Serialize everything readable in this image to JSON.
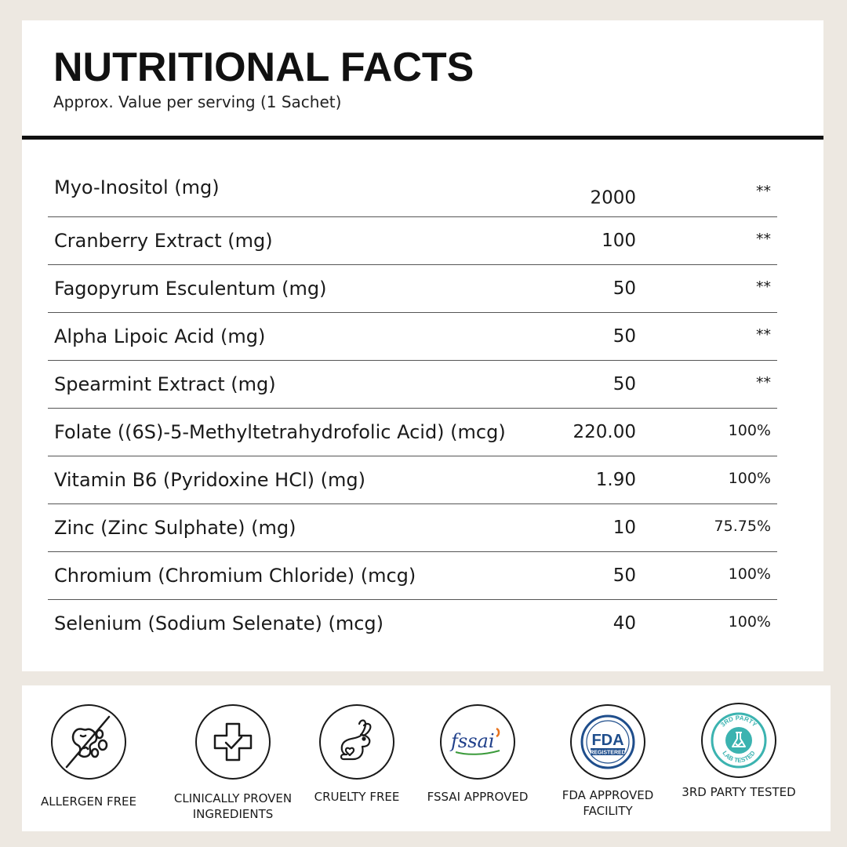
{
  "header": {
    "title": "NUTRITIONAL FACTS",
    "subtitle": "Approx. Value per serving (1 Sachet)"
  },
  "nutrients": [
    {
      "name": "Myo-Inositol (mg)",
      "amount": "2000",
      "dv": "**"
    },
    {
      "name": "Cranberry Extract (mg)",
      "amount": "100",
      "dv": "**"
    },
    {
      "name": "Fagopyrum Esculentum (mg)",
      "amount": "50",
      "dv": "**"
    },
    {
      "name": "Alpha Lipoic Acid (mg)",
      "amount": "50",
      "dv": "**"
    },
    {
      "name": "Spearmint Extract (mg)",
      "amount": "50",
      "dv": "**"
    },
    {
      "name": "Folate ((6S)-5-Methyltetrahydrofolic Acid) (mcg)",
      "amount": "220.00",
      "dv": "100%"
    },
    {
      "name": "Vitamin B6 (Pyridoxine HCl) (mg)",
      "amount": "1.90",
      "dv": "100%"
    },
    {
      "name": "Zinc (Zinc Sulphate) (mg)",
      "amount": "10",
      "dv": "75.75%"
    },
    {
      "name": "Chromium (Chromium Chloride) (mcg)",
      "amount": "50",
      "dv": "100%"
    },
    {
      "name": "Selenium (Sodium Selenate) (mcg)",
      "amount": "40",
      "dv": "100%"
    }
  ],
  "badges": [
    {
      "icon": "allergen-free-icon",
      "label": "ALLERGEN FREE"
    },
    {
      "icon": "clinically-proven-icon",
      "label": "CLINICALLY PROVEN\nINGREDIENTS"
    },
    {
      "icon": "cruelty-free-bunny-icon",
      "label": "CRUELTY FREE"
    },
    {
      "icon": "fssai-logo-icon",
      "label": "FSSAI APPROVED",
      "logo_text": "fssai"
    },
    {
      "icon": "fda-registered-icon",
      "label": "FDA APPROVED\nFACILITY",
      "logo_text": "FDA",
      "logo_subtext": "REGISTERED"
    },
    {
      "icon": "third-party-tested-icon",
      "label": "3RD PARTY TESTED",
      "logo_text_top": "3RD PARTY",
      "logo_text_bottom": "LAB TESTED"
    }
  ],
  "colors": {
    "background": "#ede8e1",
    "card": "#ffffff",
    "text": "#1a1a1a",
    "fda_blue": "#1f4e8c",
    "fssai_orange": "#e8731d",
    "lab_teal": "#3bb3b0"
  }
}
